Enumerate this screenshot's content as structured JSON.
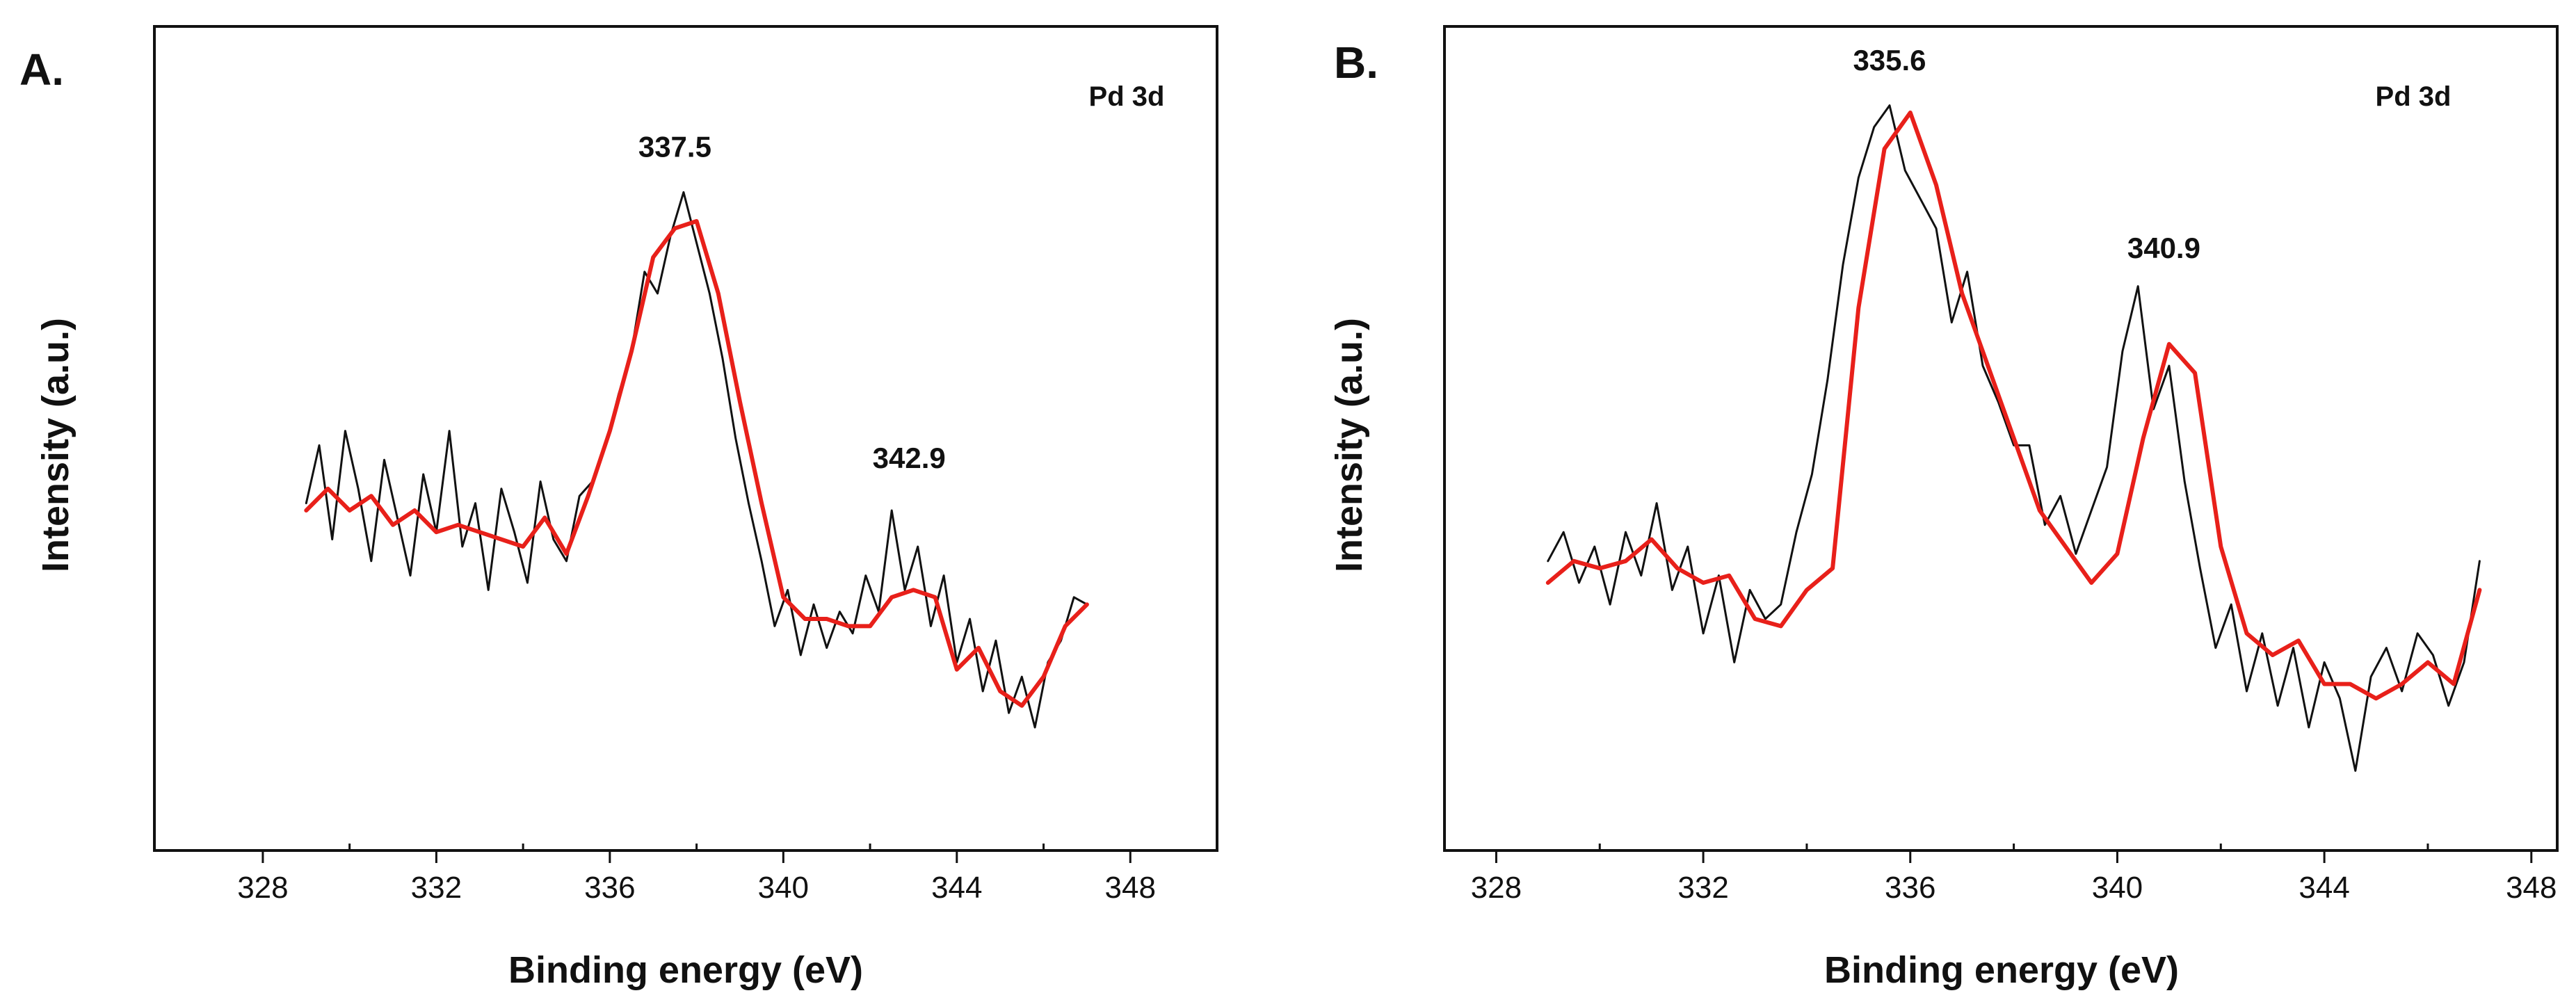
{
  "chart_data": [
    {
      "type": "line",
      "panel_label": "A.",
      "corner_label": "Pd 3d",
      "xlabel": "Binding energy (eV)",
      "ylabel": "Intensity (a.u.)",
      "xlim": [
        325.5,
        350.0
      ],
      "ylim": [
        0,
        100
      ],
      "xticks": [
        328,
        332,
        336,
        340,
        344,
        348
      ],
      "xtick_labels": [
        "328",
        "332",
        "336",
        "340",
        "344",
        "348"
      ],
      "colors": {
        "raw": "#111111",
        "fit": "#e8201a"
      },
      "series": [
        {
          "name": "raw",
          "x": [
            329.0,
            329.3,
            329.6,
            329.9,
            330.2,
            330.5,
            330.8,
            331.1,
            331.4,
            331.7,
            332.0,
            332.3,
            332.6,
            332.9,
            333.2,
            333.5,
            333.8,
            334.1,
            334.4,
            334.7,
            335.0,
            335.3,
            335.6,
            335.9,
            336.2,
            336.5,
            336.8,
            337.1,
            337.4,
            337.7,
            338.0,
            338.3,
            338.6,
            338.9,
            339.2,
            339.5,
            339.8,
            340.1,
            340.4,
            340.7,
            341.0,
            341.3,
            341.6,
            341.9,
            342.2,
            342.5,
            342.8,
            343.1,
            343.4,
            343.7,
            344.0,
            344.3,
            344.6,
            344.9,
            345.2,
            345.5,
            345.8,
            346.1,
            346.4,
            346.7,
            347.0
          ],
          "values": [
            41,
            49,
            36,
            51,
            43,
            33,
            47,
            39,
            31,
            45,
            37,
            51,
            35,
            41,
            29,
            43,
            37,
            30,
            44,
            36,
            33,
            42,
            44,
            49,
            56,
            62,
            73,
            70,
            78,
            84,
            77,
            70,
            61,
            50,
            41,
            33,
            24,
            29,
            20,
            27,
            21,
            26,
            23,
            31,
            26,
            40,
            29,
            35,
            24,
            31,
            19,
            25,
            15,
            22,
            12,
            17,
            10,
            19,
            22,
            28,
            27
          ]
        },
        {
          "name": "fit",
          "x": [
            329.0,
            329.5,
            330.0,
            330.5,
            331.0,
            331.5,
            332.0,
            332.5,
            333.0,
            333.5,
            334.0,
            334.5,
            335.0,
            335.5,
            336.0,
            336.5,
            337.0,
            337.5,
            338.0,
            338.5,
            339.0,
            339.5,
            340.0,
            340.5,
            341.0,
            341.5,
            342.0,
            342.5,
            343.0,
            343.5,
            344.0,
            344.5,
            345.0,
            345.5,
            346.0,
            346.5,
            347.0
          ],
          "values": [
            40,
            43,
            40,
            42,
            38,
            40,
            37,
            38,
            37,
            36,
            35,
            39,
            34,
            42,
            51,
            62,
            75,
            79,
            80,
            70,
            55,
            41,
            28,
            25,
            25,
            24,
            24,
            28,
            29,
            28,
            18,
            21,
            15,
            13,
            17,
            24,
            27
          ]
        }
      ],
      "annotations": [
        {
          "text": "337.5",
          "x": 337.5,
          "y": 86
        },
        {
          "text": "342.9",
          "x": 342.9,
          "y": 43
        }
      ]
    },
    {
      "type": "line",
      "panel_label": "B.",
      "corner_label": "Pd 3d",
      "xlabel": "Binding energy (eV)",
      "ylabel": "Intensity (a.u.)",
      "xlim": [
        327.0,
        348.5
      ],
      "ylim": [
        0,
        100
      ],
      "xticks": [
        328,
        332,
        336,
        340,
        344,
        348
      ],
      "xtick_labels": [
        "328",
        "332",
        "336",
        "340",
        "344",
        "348"
      ],
      "colors": {
        "raw": "#111111",
        "fit": "#e8201a"
      },
      "series": [
        {
          "name": "raw",
          "x": [
            329.0,
            329.3,
            329.6,
            329.9,
            330.2,
            330.5,
            330.8,
            331.1,
            331.4,
            331.7,
            332.0,
            332.3,
            332.6,
            332.9,
            333.2,
            333.5,
            333.8,
            334.1,
            334.4,
            334.7,
            335.0,
            335.3,
            335.6,
            335.9,
            336.2,
            336.5,
            336.8,
            337.1,
            337.4,
            337.7,
            338.0,
            338.3,
            338.6,
            338.9,
            339.2,
            339.5,
            339.8,
            340.1,
            340.4,
            340.7,
            341.0,
            341.3,
            341.6,
            341.9,
            342.2,
            342.5,
            342.8,
            343.1,
            343.4,
            343.7,
            344.0,
            344.3,
            344.6,
            344.9,
            345.2,
            345.5,
            345.8,
            346.1,
            346.4,
            346.7,
            347.0
          ],
          "values": [
            33,
            37,
            30,
            35,
            27,
            37,
            31,
            41,
            29,
            35,
            23,
            31,
            19,
            29,
            25,
            27,
            37,
            45,
            58,
            74,
            86,
            93,
            96,
            87,
            83,
            79,
            66,
            73,
            60,
            55,
            49,
            49,
            38,
            42,
            34,
            40,
            46,
            62,
            71,
            54,
            60,
            44,
            32,
            21,
            27,
            15,
            23,
            13,
            21,
            10,
            19,
            14,
            4,
            17,
            21,
            15,
            23,
            20,
            13,
            19,
            33
          ]
        },
        {
          "name": "fit",
          "x": [
            329.0,
            329.5,
            330.0,
            330.5,
            331.0,
            331.5,
            332.0,
            332.5,
            333.0,
            333.5,
            334.0,
            334.5,
            335.0,
            335.5,
            336.0,
            336.5,
            337.0,
            337.5,
            338.0,
            338.5,
            339.0,
            339.5,
            340.0,
            340.5,
            341.0,
            341.5,
            342.0,
            342.5,
            343.0,
            343.5,
            344.0,
            344.5,
            345.0,
            345.5,
            346.0,
            346.5,
            347.0
          ],
          "values": [
            30,
            33,
            32,
            33,
            36,
            32,
            30,
            31,
            25,
            24,
            29,
            32,
            68,
            90,
            95,
            85,
            70,
            60,
            50,
            40,
            35,
            30,
            34,
            50,
            63,
            59,
            35,
            23,
            20,
            22,
            16,
            16,
            14,
            16,
            19,
            16,
            29
          ]
        }
      ],
      "annotations": [
        {
          "text": "335.6",
          "x": 335.6,
          "y": 98
        },
        {
          "text": "340.9",
          "x": 340.9,
          "y": 72
        }
      ]
    }
  ]
}
